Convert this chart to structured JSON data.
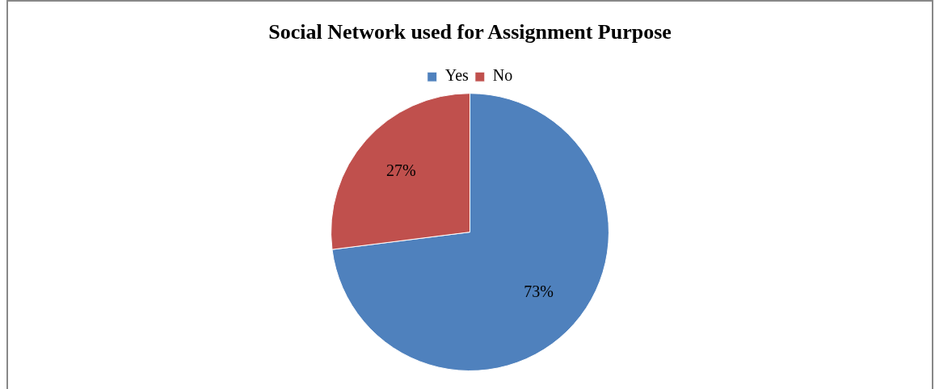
{
  "chart_data": {
    "type": "pie",
    "title": "Social Network used for Assignment Purpose",
    "categories": [
      "Yes",
      "No"
    ],
    "values": [
      73,
      27
    ],
    "colors": [
      "#4f81bd",
      "#c0504d"
    ],
    "value_labels": [
      "73%",
      "27%"
    ],
    "legend": "top"
  }
}
